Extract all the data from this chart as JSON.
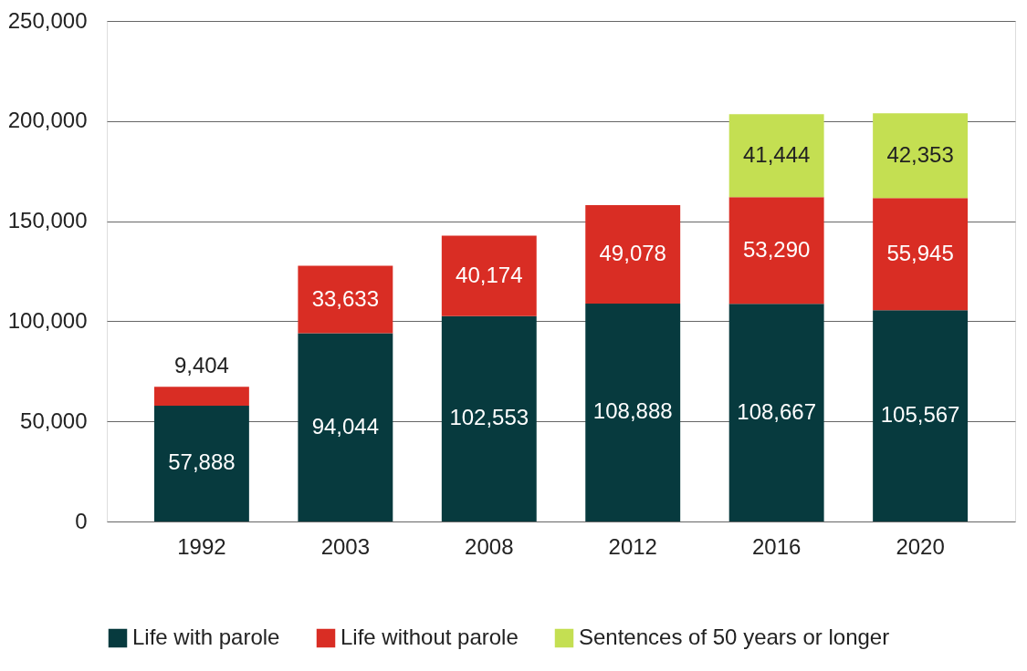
{
  "chart_data": {
    "type": "bar",
    "stacked": true,
    "categories": [
      "1992",
      "2003",
      "2008",
      "2012",
      "2016",
      "2020"
    ],
    "series": [
      {
        "name": "Life with parole",
        "color": "#073a3e",
        "values": [
          57888,
          94044,
          102553,
          108888,
          108667,
          105567
        ],
        "value_labels": [
          "57,888",
          "94,044",
          "102,553",
          "108,888",
          "108,667",
          "105,567"
        ]
      },
      {
        "name": "Life without parole",
        "color": "#d92d24",
        "values": [
          9404,
          33633,
          40174,
          49078,
          53290,
          55945
        ],
        "value_labels": [
          "9,404",
          "33,633",
          "40,174",
          "49,078",
          "53,290",
          "55,945"
        ]
      },
      {
        "name": "Sentences of 50 years or longer",
        "color": "#c4df52",
        "values": [
          null,
          null,
          null,
          null,
          41444,
          42353
        ],
        "value_labels": [
          null,
          null,
          null,
          null,
          "41,444",
          "42,353"
        ]
      }
    ],
    "ylim": [
      0,
      250000
    ],
    "yticks": [
      0,
      {
        "value": 50000,
        "label": "50,000"
      },
      {
        "value": 100000,
        "label": "100,000"
      },
      {
        "value": 150000,
        "label": "150,000"
      },
      {
        "value": 200000,
        "label": "200,000"
      },
      {
        "value": 250000,
        "label": "250,000"
      }
    ],
    "grid": "y",
    "legend": "bottom"
  }
}
